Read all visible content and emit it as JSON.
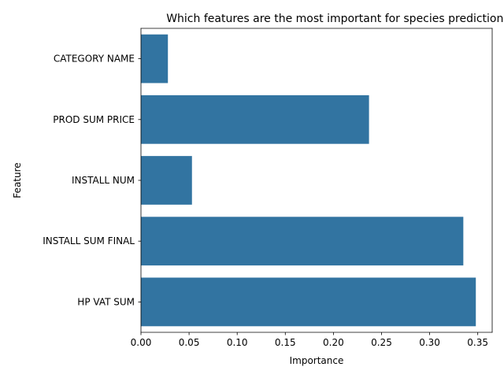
{
  "chart_data": {
    "type": "bar",
    "orientation": "horizontal",
    "title": "Which features are the most important for species prediction?",
    "xlabel": "Importance",
    "ylabel": "Feature",
    "categories": [
      "CATEGORY NAME",
      "PROD SUM PRICE",
      "INSTALL NUM",
      "INSTALL SUM FINAL",
      "HP VAT SUM"
    ],
    "values": [
      0.028,
      0.237,
      0.053,
      0.335,
      0.348
    ],
    "xlim": [
      0,
      0.365
    ],
    "xticks": [
      0.0,
      0.05,
      0.1,
      0.15,
      0.2,
      0.25,
      0.3,
      0.35
    ],
    "xtick_labels": [
      "0.00",
      "0.05",
      "0.10",
      "0.15",
      "0.20",
      "0.25",
      "0.30",
      "0.35"
    ],
    "grid": false,
    "bar_color": "#3274a1"
  }
}
